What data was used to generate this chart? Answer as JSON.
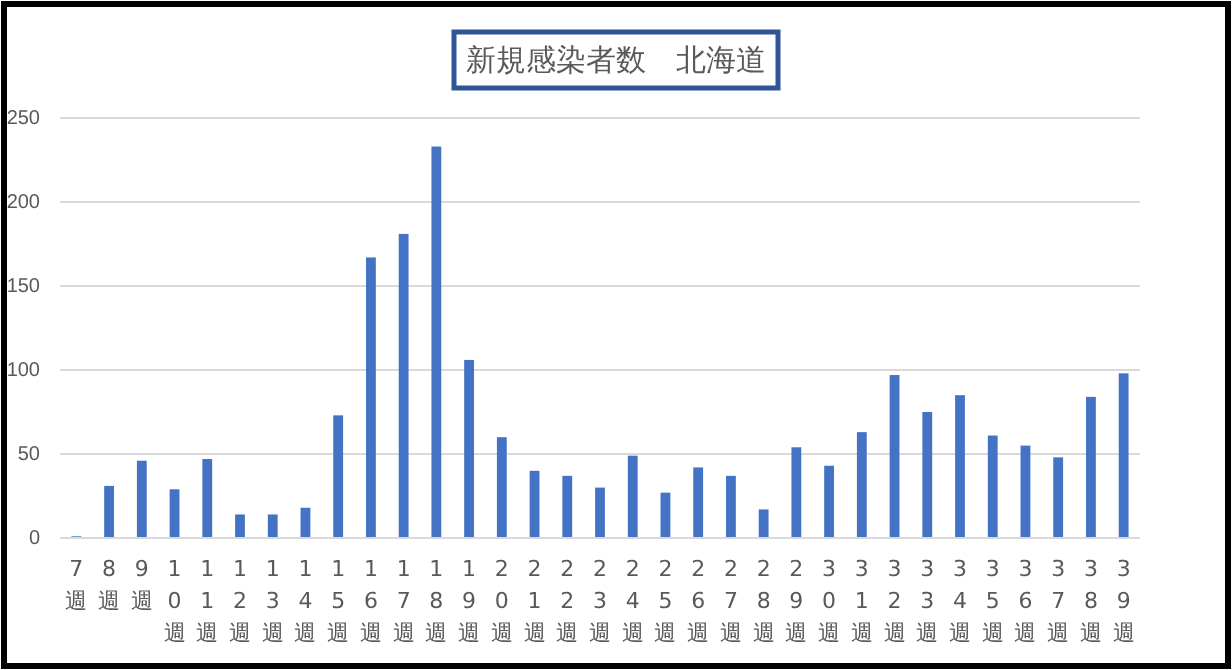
{
  "chart_data": {
    "type": "bar",
    "title": "新規感染者数　北海道",
    "categories": [
      "7週",
      "8週",
      "9週",
      "10週",
      "11週",
      "12週",
      "13週",
      "14週",
      "15週",
      "16週",
      "17週",
      "18週",
      "19週",
      "20週",
      "21週",
      "22週",
      "23週",
      "24週",
      "25週",
      "26週",
      "27週",
      "28週",
      "29週",
      "30週",
      "31週",
      "32週",
      "33週",
      "34週",
      "35週",
      "36週",
      "37週",
      "38週",
      "39週"
    ],
    "values": [
      1,
      31,
      46,
      29,
      47,
      14,
      14,
      18,
      73,
      167,
      181,
      233,
      106,
      60,
      40,
      37,
      30,
      49,
      27,
      42,
      37,
      17,
      54,
      43,
      63,
      97,
      75,
      85,
      61,
      55,
      48,
      84,
      98
    ],
    "color": "#4472c4",
    "ylim": [
      0,
      250
    ],
    "yticks": [
      0,
      50,
      100,
      150,
      200,
      250
    ],
    "grid": "y"
  }
}
